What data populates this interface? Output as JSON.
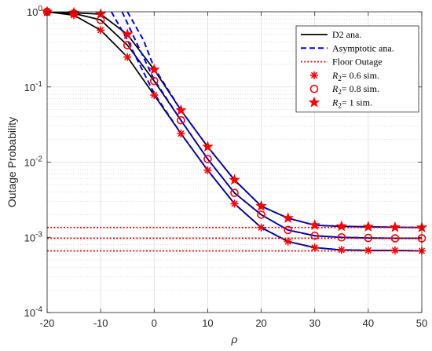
{
  "chart_data": {
    "type": "line",
    "title": "",
    "xlabel": "ρ",
    "ylabel": "Outage Probability",
    "xlim": [
      -20,
      50
    ],
    "ylim": [
      0.0001,
      1
    ],
    "yscale": "log",
    "grid": true,
    "x_ticks": [
      {
        "value": -20,
        "label": "-20"
      },
      {
        "value": -10,
        "label": "-10"
      },
      {
        "value": 0,
        "label": "0"
      },
      {
        "value": 10,
        "label": "10"
      },
      {
        "value": 20,
        "label": "20"
      },
      {
        "value": 30,
        "label": "30"
      },
      {
        "value": 40,
        "label": "40"
      },
      {
        "value": 50,
        "label": "50"
      }
    ],
    "y_ticks": [
      {
        "value": 0.0001,
        "base": "10",
        "exp": "-4"
      },
      {
        "value": 0.001,
        "base": "10",
        "exp": "-3"
      },
      {
        "value": 0.01,
        "base": "10",
        "exp": "-2"
      },
      {
        "value": 0.1,
        "base": "10",
        "exp": "-1"
      },
      {
        "value": 1,
        "base": "10",
        "exp": "0"
      }
    ],
    "legend": {
      "placement": "top-right",
      "entries": [
        {
          "label": "D2 ana.",
          "style": "solid-line",
          "color": "#000000"
        },
        {
          "label": "Asymptotic ana.",
          "style": "dashed-line",
          "color": "#0000ff"
        },
        {
          "label": "Floor Outage",
          "style": "dotted-line",
          "color": "#ff0000"
        },
        {
          "label": "R2= 0.6 sim.",
          "label_main": "R",
          "label_sub": "2",
          "label_rest": "= 0.6 sim.",
          "style": "asterisk-marker",
          "color": "#ff0000"
        },
        {
          "label": "R2= 0.8 sim.",
          "label_main": "R",
          "label_sub": "2",
          "label_rest": "= 0.8 sim.",
          "style": "circle-marker",
          "color": "#ff0000"
        },
        {
          "label": "R2= 1 sim.",
          "label_main": "R",
          "label_sub": "2",
          "label_rest": "= 1 sim.",
          "style": "star-marker",
          "color": "#ff0000"
        }
      ]
    },
    "x": [
      -20,
      -15,
      -10,
      -5,
      0,
      5,
      10,
      15,
      20,
      25,
      30,
      35,
      40,
      45,
      50
    ],
    "series": [
      {
        "ref": "R2=0.6",
        "kind": "D2 ana.",
        "color": "#000000",
        "values": [
          1.0,
          0.9,
          0.57,
          0.25,
          0.078,
          0.024,
          0.0078,
          0.0028,
          0.00135,
          0.00088,
          0.00073,
          0.00068,
          0.00067,
          0.00067,
          0.00066
        ]
      },
      {
        "ref": "R2=0.8",
        "kind": "D2 ana.",
        "color": "#000000",
        "values": [
          1.0,
          0.95,
          0.78,
          0.36,
          0.12,
          0.036,
          0.011,
          0.0039,
          0.002,
          0.00125,
          0.00105,
          0.001,
          0.00098,
          0.00097,
          0.00097
        ]
      },
      {
        "ref": "R2=1",
        "kind": "D2 ana.",
        "color": "#000000",
        "values": [
          1.0,
          0.97,
          0.93,
          0.5,
          0.17,
          0.049,
          0.016,
          0.0058,
          0.0026,
          0.0018,
          0.00145,
          0.0014,
          0.00138,
          0.00136,
          0.00135
        ]
      },
      {
        "ref": "R2=0.6",
        "kind": "Asymptotic ana.",
        "color": "#0000ff",
        "x": [
          -8,
          -5,
          0,
          5,
          10,
          15,
          20,
          25,
          30,
          35,
          40,
          45,
          50
        ],
        "values": [
          1.0,
          0.42,
          0.082,
          0.024,
          0.0078,
          0.0028,
          0.00135,
          0.00088,
          0.00073,
          0.00068,
          0.00067,
          0.00067,
          0.00066
        ]
      },
      {
        "ref": "R2=0.8",
        "kind": "Asymptotic ana.",
        "color": "#0000ff",
        "x": [
          -6,
          -3,
          0,
          5,
          10,
          15,
          20,
          25,
          30,
          35,
          40,
          45,
          50
        ],
        "values": [
          1.0,
          0.35,
          0.125,
          0.036,
          0.011,
          0.0039,
          0.002,
          0.00125,
          0.00105,
          0.001,
          0.00098,
          0.00097,
          0.00097
        ]
      },
      {
        "ref": "R2=1",
        "kind": "Asymptotic ana.",
        "color": "#0000ff",
        "x": [
          -5,
          -2,
          0,
          5,
          10,
          15,
          20,
          25,
          30,
          35,
          40,
          45,
          50
        ],
        "values": [
          1.0,
          0.42,
          0.18,
          0.049,
          0.016,
          0.0058,
          0.0026,
          0.0018,
          0.00145,
          0.0014,
          0.00138,
          0.00136,
          0.00135
        ]
      },
      {
        "ref": "R2=0.6",
        "kind": "Floor Outage",
        "color": "#ff0000",
        "constant": 0.00066
      },
      {
        "ref": "R2=0.8",
        "kind": "Floor Outage",
        "color": "#ff0000",
        "constant": 0.00097
      },
      {
        "ref": "R2=1",
        "kind": "Floor Outage",
        "color": "#ff0000",
        "constant": 0.00135
      },
      {
        "ref": "R2=0.6",
        "kind": "sim",
        "marker": "asterisk",
        "color": "#ff0000",
        "values": [
          1.0,
          0.9,
          0.57,
          0.25,
          0.078,
          0.024,
          0.0078,
          0.0028,
          0.00135,
          0.00088,
          0.00073,
          0.00068,
          0.00067,
          0.00067,
          0.00066
        ]
      },
      {
        "ref": "R2=0.8",
        "kind": "sim",
        "marker": "circle",
        "color": "#ff0000",
        "values": [
          1.0,
          0.95,
          0.78,
          0.36,
          0.12,
          0.036,
          0.011,
          0.0039,
          0.002,
          0.00125,
          0.00105,
          0.001,
          0.00098,
          0.00097,
          0.00097
        ]
      },
      {
        "ref": "R2=1",
        "kind": "sim",
        "marker": "star",
        "color": "#ff0000",
        "values": [
          1.0,
          0.97,
          0.93,
          0.5,
          0.17,
          0.049,
          0.016,
          0.0058,
          0.0026,
          0.0018,
          0.00145,
          0.0014,
          0.00138,
          0.00136,
          0.00135
        ]
      }
    ]
  }
}
